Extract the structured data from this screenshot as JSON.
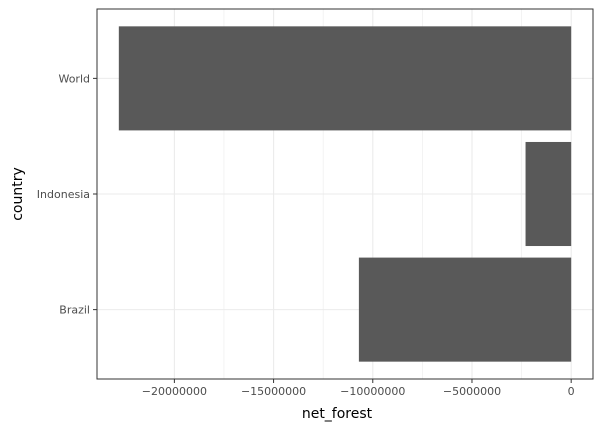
{
  "chart_data": {
    "type": "bar",
    "orientation": "horizontal",
    "categories": [
      "Brazil",
      "Indonesia",
      "World"
    ],
    "values": [
      -10700000,
      -2300000,
      -22800000
    ],
    "xlabel": "net_forest",
    "ylabel": "country",
    "xlim": [
      -23900000,
      1100000
    ],
    "xticks": [
      -20000000,
      -15000000,
      -10000000,
      -5000000,
      0
    ],
    "xtick_labels": [
      "−20000000",
      "−15000000",
      "−10000000",
      "−5000000",
      "0"
    ],
    "grid": true,
    "legend": "none",
    "bar_color": "#595959",
    "grid_color": "#ebebeb",
    "panel_border_color": "#333333"
  }
}
